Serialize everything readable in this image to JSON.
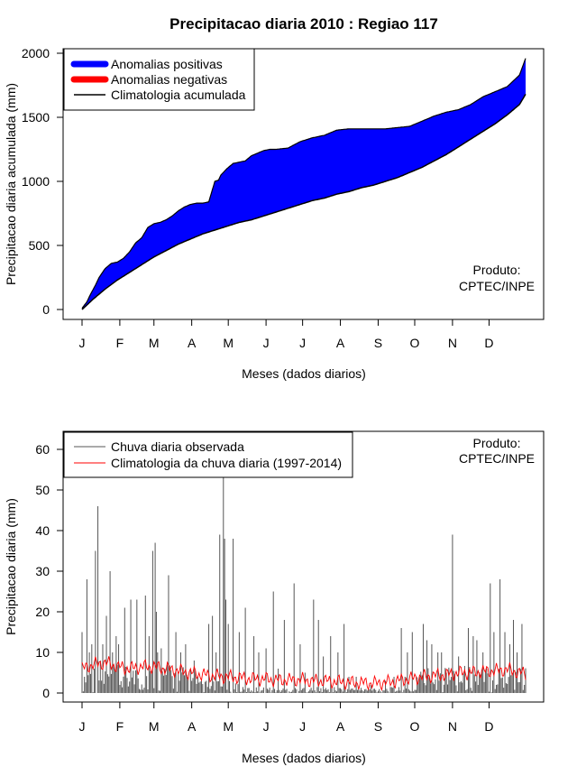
{
  "title": "Precipitacao diaria 2010 : Regiao 117",
  "colors": {
    "positive": "#0000ff",
    "negative": "#ff0000",
    "climatology_line": "#000000",
    "observed_bar": "#555555",
    "climatology_daily": "#ff0000"
  },
  "chart_data": [
    {
      "type": "area",
      "name": "accumulated",
      "xlabel": "Meses (dados diarios)",
      "ylabel": "Precipitacao diaria acumulada (mm)",
      "ylim": [
        0,
        2000
      ],
      "yticks": [
        "0",
        "500",
        "1000",
        "1500",
        "2000"
      ],
      "months": [
        "J",
        "F",
        "M",
        "A",
        "M",
        "J",
        "J",
        "A",
        "S",
        "O",
        "N",
        "D"
      ],
      "legend": [
        "Anomalias positivas",
        "Anomalias negativas",
        "Climatologia acumulada"
      ],
      "credit": [
        "Produto:",
        "CPTEC/INPE"
      ],
      "observed_cumulative": {
        "x": [
          1,
          5,
          8,
          12,
          15,
          20,
          25,
          30,
          35,
          40,
          45,
          50,
          55,
          60,
          65,
          70,
          75,
          80,
          85,
          90,
          95,
          100,
          105,
          110,
          113,
          115,
          120,
          125,
          130,
          135,
          140,
          145,
          150,
          155,
          160,
          170,
          180,
          190,
          200,
          210,
          220,
          230,
          240,
          250,
          260,
          270,
          280,
          290,
          300,
          310,
          320,
          330,
          340,
          350,
          360,
          365
        ],
        "y": [
          10,
          60,
          120,
          190,
          250,
          320,
          360,
          370,
          400,
          450,
          520,
          560,
          640,
          670,
          680,
          700,
          730,
          770,
          800,
          820,
          830,
          830,
          840,
          1000,
          1010,
          1050,
          1100,
          1140,
          1150,
          1160,
          1200,
          1220,
          1240,
          1250,
          1250,
          1260,
          1310,
          1340,
          1360,
          1400,
          1410,
          1410,
          1410,
          1410,
          1420,
          1430,
          1470,
          1510,
          1540,
          1560,
          1600,
          1660,
          1700,
          1740,
          1830,
          1960
        ]
      },
      "climatology_cumulative": {
        "x": [
          1,
          10,
          20,
          30,
          40,
          50,
          60,
          70,
          80,
          90,
          100,
          110,
          120,
          130,
          140,
          150,
          160,
          170,
          180,
          190,
          200,
          210,
          220,
          230,
          240,
          250,
          260,
          270,
          280,
          290,
          300,
          310,
          320,
          330,
          340,
          350,
          360,
          365
        ],
        "y": [
          0,
          80,
          160,
          230,
          290,
          350,
          410,
          460,
          510,
          550,
          590,
          620,
          650,
          680,
          700,
          730,
          760,
          790,
          820,
          850,
          870,
          900,
          920,
          950,
          970,
          1000,
          1030,
          1070,
          1110,
          1160,
          1210,
          1270,
          1330,
          1390,
          1450,
          1520,
          1600,
          1680
        ]
      }
    },
    {
      "type": "bar",
      "name": "daily",
      "xlabel": "Meses (dados diarios)",
      "ylabel": "Precipitacao diaria (mm)",
      "ylim": [
        0,
        60
      ],
      "yticks": [
        "0",
        "10",
        "20",
        "30",
        "40",
        "50",
        "60"
      ],
      "months": [
        "J",
        "F",
        "M",
        "A",
        "M",
        "J",
        "J",
        "A",
        "S",
        "O",
        "N",
        "D"
      ],
      "legend": [
        "Chuva diaria observada",
        "Climatologia da chuva diaria (1997-2014)"
      ],
      "credit": [
        "Produto:",
        "CPTEC/INPE"
      ],
      "observed_daily_peaks": {
        "day": [
          1,
          3,
          5,
          7,
          9,
          11,
          12,
          14,
          16,
          18,
          21,
          24,
          26,
          29,
          31,
          36,
          41,
          46,
          53,
          56,
          59,
          61,
          62,
          63,
          66,
          69,
          71,
          72,
          78,
          82,
          86,
          91,
          93,
          96,
          99,
          103,
          105,
          108,
          111,
          114,
          117,
          118,
          119,
          121,
          125,
          130,
          135,
          142,
          146,
          152,
          158,
          162,
          167,
          175,
          180,
          184,
          191,
          195,
          199,
          205,
          211,
          216,
          220,
          226,
          238,
          250,
          257,
          263,
          266,
          268,
          272,
          277,
          281,
          284,
          288,
          293,
          296,
          300,
          305,
          310,
          314,
          318,
          322,
          325,
          330,
          336,
          339,
          344,
          348,
          352,
          355,
          358,
          362,
          364
        ],
        "value": [
          15,
          4,
          28,
          10,
          12,
          6,
          35,
          46,
          8,
          12,
          19,
          30,
          10,
          14,
          12,
          21,
          23,
          23,
          24,
          14,
          35,
          37,
          20,
          10,
          11,
          6,
          7,
          29,
          15,
          10,
          12,
          3,
          8,
          4,
          3,
          3,
          17,
          19,
          10,
          39,
          53,
          38,
          23,
          17,
          38,
          15,
          21,
          14,
          10,
          11,
          25,
          6,
          18,
          27,
          12,
          5,
          23,
          18,
          9,
          14,
          10,
          17,
          4,
          4,
          2,
          3,
          4,
          16,
          4,
          10,
          15,
          3,
          17,
          13,
          12,
          10,
          10,
          5,
          39,
          9,
          5,
          16,
          14,
          13,
          10,
          27,
          15,
          28,
          15,
          12,
          18,
          10,
          17,
          2
        ]
      },
      "climatology_daily_anchors": {
        "day": [
          1,
          10,
          20,
          30,
          40,
          50,
          60,
          70,
          80,
          90,
          100,
          110,
          120,
          130,
          140,
          150,
          160,
          170,
          180,
          190,
          200,
          210,
          220,
          230,
          240,
          250,
          260,
          270,
          280,
          290,
          300,
          310,
          320,
          330,
          340,
          350,
          360,
          365
        ],
        "value": [
          6,
          7,
          7.5,
          6.5,
          6,
          6.5,
          6.5,
          6,
          5.5,
          5,
          4.5,
          4.2,
          4,
          3.8,
          3.5,
          3.5,
          3.2,
          3.2,
          3.3,
          3,
          3,
          2.8,
          2.6,
          2.5,
          2.4,
          2.6,
          3,
          3.5,
          4,
          4.3,
          4.5,
          5,
          5,
          5.3,
          5.5,
          5.8,
          5,
          4.8
        ]
      }
    }
  ]
}
